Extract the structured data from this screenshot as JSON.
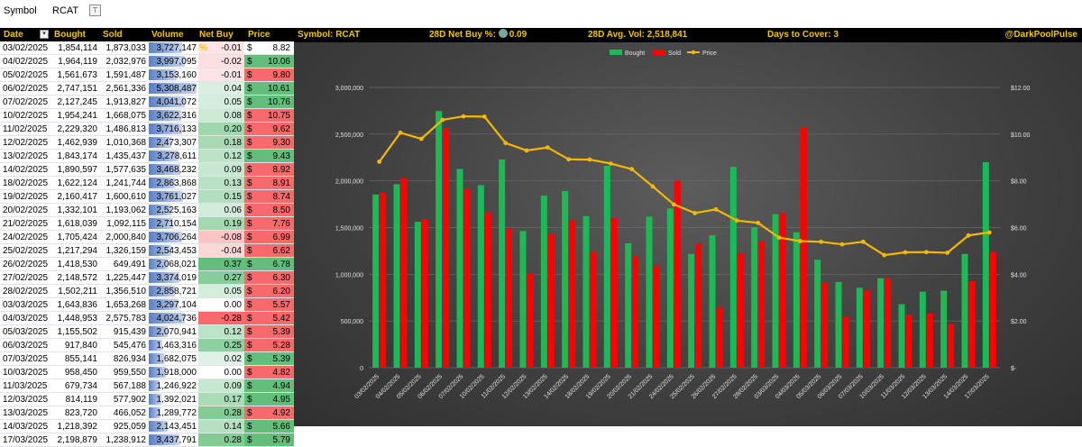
{
  "filter": {
    "label": "Symbol",
    "value": "RCAT",
    "button": "⊤"
  },
  "table": {
    "headers": [
      "Date",
      "Bought",
      "Sold",
      "Volume",
      "Net Buy %",
      "Price"
    ],
    "max_volume": 5308487,
    "rows": [
      {
        "date": "03/02/2025",
        "bought": "1,854,114",
        "sold": "1,873,033",
        "volume": "3,727,147",
        "volume_value": 3727147,
        "net": "-0.01",
        "net_value": -0.01,
        "price": "8.82",
        "price_dir": "none"
      },
      {
        "date": "04/02/2025",
        "bought": "1,964,119",
        "sold": "2,032,976",
        "volume": "3,997,095",
        "volume_value": 3997095,
        "net": "-0.02",
        "net_value": -0.02,
        "price": "10.06",
        "price_dir": "up"
      },
      {
        "date": "05/02/2025",
        "bought": "1,561,673",
        "sold": "1,591,487",
        "volume": "3,153,160",
        "volume_value": 3153160,
        "net": "-0.01",
        "net_value": -0.01,
        "price": "9.80",
        "price_dir": "down"
      },
      {
        "date": "06/02/2025",
        "bought": "2,747,151",
        "sold": "2,561,336",
        "volume": "5,308,487",
        "volume_value": 5308487,
        "net": "0.04",
        "net_value": 0.04,
        "price": "10.61",
        "price_dir": "up"
      },
      {
        "date": "07/02/2025",
        "bought": "2,127,245",
        "sold": "1,913,827",
        "volume": "4,041,072",
        "volume_value": 4041072,
        "net": "0.05",
        "net_value": 0.05,
        "price": "10.76",
        "price_dir": "up"
      },
      {
        "date": "10/02/2025",
        "bought": "1,954,241",
        "sold": "1,668,075",
        "volume": "3,622,316",
        "volume_value": 3622316,
        "net": "0.08",
        "net_value": 0.08,
        "price": "10.75",
        "price_dir": "down"
      },
      {
        "date": "11/02/2025",
        "bought": "2,229,320",
        "sold": "1,486,813",
        "volume": "3,716,133",
        "volume_value": 3716133,
        "net": "0.20",
        "net_value": 0.2,
        "price": "9.62",
        "price_dir": "down"
      },
      {
        "date": "12/02/2025",
        "bought": "1,462,939",
        "sold": "1,010,368",
        "volume": "2,473,307",
        "volume_value": 2473307,
        "net": "0.18",
        "net_value": 0.18,
        "price": "9.30",
        "price_dir": "down"
      },
      {
        "date": "13/02/2025",
        "bought": "1,843,174",
        "sold": "1,435,437",
        "volume": "3,278,611",
        "volume_value": 3278611,
        "net": "0.12",
        "net_value": 0.12,
        "price": "9.43",
        "price_dir": "up"
      },
      {
        "date": "14/02/2025",
        "bought": "1,890,597",
        "sold": "1,577,635",
        "volume": "3,468,232",
        "volume_value": 3468232,
        "net": "0.09",
        "net_value": 0.09,
        "price": "8.92",
        "price_dir": "down"
      },
      {
        "date": "18/02/2025",
        "bought": "1,622,124",
        "sold": "1,241,744",
        "volume": "2,863,868",
        "volume_value": 2863868,
        "net": "0.13",
        "net_value": 0.13,
        "price": "8.91",
        "price_dir": "down"
      },
      {
        "date": "19/02/2025",
        "bought": "2,160,417",
        "sold": "1,600,610",
        "volume": "3,761,027",
        "volume_value": 3761027,
        "net": "0.15",
        "net_value": 0.15,
        "price": "8.74",
        "price_dir": "down"
      },
      {
        "date": "20/02/2025",
        "bought": "1,332,101",
        "sold": "1,193,062",
        "volume": "2,525,163",
        "volume_value": 2525163,
        "net": "0.06",
        "net_value": 0.06,
        "price": "8.50",
        "price_dir": "down"
      },
      {
        "date": "21/02/2025",
        "bought": "1,618,039",
        "sold": "1,092,115",
        "volume": "2,710,154",
        "volume_value": 2710154,
        "net": "0.19",
        "net_value": 0.19,
        "price": "7.76",
        "price_dir": "down"
      },
      {
        "date": "24/02/2025",
        "bought": "1,705,424",
        "sold": "2,000,840",
        "volume": "3,706,264",
        "volume_value": 3706264,
        "net": "-0.08",
        "net_value": -0.08,
        "price": "6.99",
        "price_dir": "down"
      },
      {
        "date": "25/02/2025",
        "bought": "1,217,294",
        "sold": "1,326,159",
        "volume": "2,543,453",
        "volume_value": 2543453,
        "net": "-0.04",
        "net_value": -0.04,
        "price": "6.62",
        "price_dir": "down"
      },
      {
        "date": "26/02/2025",
        "bought": "1,418,530",
        "sold": "649,491",
        "volume": "2,068,021",
        "volume_value": 2068021,
        "net": "0.37",
        "net_value": 0.37,
        "price": "6.78",
        "price_dir": "up"
      },
      {
        "date": "27/02/2025",
        "bought": "2,148,572",
        "sold": "1,225,447",
        "volume": "3,374,019",
        "volume_value": 3374019,
        "net": "0.27",
        "net_value": 0.27,
        "price": "6.30",
        "price_dir": "down"
      },
      {
        "date": "28/02/2025",
        "bought": "1,502,211",
        "sold": "1,356,510",
        "volume": "2,858,721",
        "volume_value": 2858721,
        "net": "0.05",
        "net_value": 0.05,
        "price": "6.20",
        "price_dir": "down"
      },
      {
        "date": "03/03/2025",
        "bought": "1,643,836",
        "sold": "1,653,268",
        "volume": "3,297,104",
        "volume_value": 3297104,
        "net": "0.00",
        "net_value": 0.0,
        "price": "5.57",
        "price_dir": "down"
      },
      {
        "date": "04/03/2025",
        "bought": "1,448,953",
        "sold": "2,575,783",
        "volume": "4,024,736",
        "volume_value": 4024736,
        "net": "-0.28",
        "net_value": -0.28,
        "price": "5.42",
        "price_dir": "down"
      },
      {
        "date": "05/03/2025",
        "bought": "1,155,502",
        "sold": "915,439",
        "volume": "2,070,941",
        "volume_value": 2070941,
        "net": "0.12",
        "net_value": 0.12,
        "price": "5.39",
        "price_dir": "down"
      },
      {
        "date": "06/03/2025",
        "bought": "917,840",
        "sold": "545,476",
        "volume": "1,463,316",
        "volume_value": 1463316,
        "net": "0.25",
        "net_value": 0.25,
        "price": "5.28",
        "price_dir": "down"
      },
      {
        "date": "07/03/2025",
        "bought": "855,141",
        "sold": "826,934",
        "volume": "1,682,075",
        "volume_value": 1682075,
        "net": "0.02",
        "net_value": 0.02,
        "price": "5.39",
        "price_dir": "up"
      },
      {
        "date": "10/03/2025",
        "bought": "958,450",
        "sold": "959,550",
        "volume": "1,918,000",
        "volume_value": 1918000,
        "net": "0.00",
        "net_value": 0.0,
        "price": "4.82",
        "price_dir": "down"
      },
      {
        "date": "11/03/2025",
        "bought": "679,734",
        "sold": "567,188",
        "volume": "1,246,922",
        "volume_value": 1246922,
        "net": "0.09",
        "net_value": 0.09,
        "price": "4.94",
        "price_dir": "up"
      },
      {
        "date": "12/03/2025",
        "bought": "814,119",
        "sold": "577,902",
        "volume": "1,392,021",
        "volume_value": 1392021,
        "net": "0.17",
        "net_value": 0.17,
        "price": "4.95",
        "price_dir": "up"
      },
      {
        "date": "13/03/2025",
        "bought": "823,720",
        "sold": "466,052",
        "volume": "1,289,772",
        "volume_value": 1289772,
        "net": "0.28",
        "net_value": 0.28,
        "price": "4.92",
        "price_dir": "down"
      },
      {
        "date": "14/03/2025",
        "bought": "1,218,392",
        "sold": "925,059",
        "volume": "2,143,451",
        "volume_value": 2143451,
        "net": "0.14",
        "net_value": 0.14,
        "price": "5.66",
        "price_dir": "up"
      },
      {
        "date": "17/03/2025",
        "bought": "2,198,879",
        "sold": "1,238,912",
        "volume": "3,437,791",
        "volume_value": 3437791,
        "net": "0.28",
        "net_value": 0.28,
        "price": "5.79",
        "price_dir": "up"
      }
    ]
  },
  "header": {
    "symbol": "Symbol:  RCAT",
    "net_buy_label": "28D Net Buy %:",
    "net_buy_value": "0.09",
    "avg_vol": "28D Avg. Vol:  2,518,841",
    "days_cover": "Days to Cover:  3",
    "brand": "@DarkPoolPulse"
  },
  "colors": {
    "bought": "#1db954",
    "sold": "#ff0000",
    "price": "#f5b800",
    "header_text": "#f5c400",
    "up": "#63be7b",
    "down": "#f8696b"
  },
  "chart_data": {
    "type": "bar",
    "legend": [
      "Bought",
      "Sold",
      "Price"
    ],
    "legend_position": "top",
    "categories": [
      "03/02/2025",
      "04/02/2025",
      "05/02/2025",
      "06/02/2025",
      "07/02/2025",
      "10/02/2025",
      "11/02/2025",
      "12/02/2025",
      "13/02/2025",
      "14/02/2025",
      "18/02/2025",
      "19/02/2025",
      "20/02/2025",
      "21/02/2025",
      "24/02/2025",
      "25/02/2025",
      "26/02/2025",
      "27/02/2025",
      "28/02/2025",
      "03/03/2025",
      "04/03/2025",
      "05/03/2025",
      "06/03/2025",
      "07/03/2025",
      "10/03/2025",
      "11/03/2025",
      "12/03/2025",
      "13/03/2025",
      "14/03/2025",
      "17/03/2025"
    ],
    "series": [
      {
        "name": "Bought",
        "type": "bar",
        "axis": "left",
        "values": [
          1854114,
          1964119,
          1561673,
          2747151,
          2127245,
          1954241,
          2229320,
          1462939,
          1843174,
          1890597,
          1622124,
          2160417,
          1332101,
          1618039,
          1705424,
          1217294,
          1418530,
          2148572,
          1502211,
          1643836,
          1448953,
          1155502,
          917840,
          855141,
          958450,
          679734,
          814119,
          823720,
          1218392,
          2198879
        ]
      },
      {
        "name": "Sold",
        "type": "bar",
        "axis": "left",
        "values": [
          1873033,
          2032976,
          1591487,
          2561336,
          1913827,
          1668075,
          1486813,
          1010368,
          1435437,
          1577635,
          1241744,
          1600610,
          1193062,
          1092115,
          2000840,
          1326159,
          649491,
          1225447,
          1356510,
          1653268,
          2575783,
          915439,
          545476,
          826934,
          959550,
          567188,
          577902,
          466052,
          925059,
          1238912
        ]
      },
      {
        "name": "Price",
        "type": "line",
        "axis": "right",
        "values": [
          8.82,
          10.06,
          9.8,
          10.61,
          10.76,
          10.75,
          9.62,
          9.3,
          9.43,
          8.92,
          8.91,
          8.74,
          8.5,
          7.76,
          6.99,
          6.62,
          6.78,
          6.3,
          6.2,
          5.57,
          5.42,
          5.39,
          5.28,
          5.39,
          4.82,
          4.94,
          4.95,
          4.92,
          5.66,
          5.79
        ]
      }
    ],
    "y_left": {
      "min": 0,
      "max": 3000000,
      "ticks": [
        "0",
        "500,000",
        "1,000,000",
        "1,500,000",
        "2,000,000",
        "2,500,000",
        "3,000,000"
      ]
    },
    "y_right": {
      "min": 0,
      "max": 12,
      "ticks": [
        "$-",
        "$2.00",
        "$4.00",
        "$6.00",
        "$8.00",
        "$10.00",
        "$12.00"
      ]
    },
    "grid": true
  }
}
